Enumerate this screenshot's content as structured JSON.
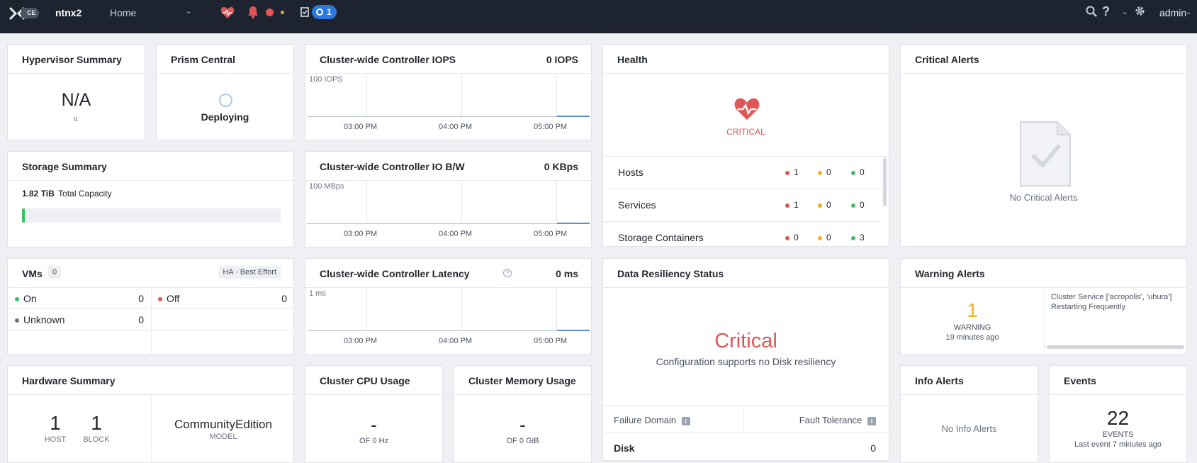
{
  "topbar": {
    "logo_badge": "CE",
    "cluster_name": "ntnx2",
    "nav_label": "Home",
    "task_count": "1",
    "user": "admin",
    "accent": "#2b79de",
    "bg": "#1d2430"
  },
  "hypervisor": {
    "title": "Hypervisor Summary",
    "value": "N/A",
    "version": "v."
  },
  "prism_central": {
    "title": "Prism Central",
    "status": "Deploying"
  },
  "iops": {
    "title": "Cluster-wide Controller IOPS",
    "value": "0 IOPS",
    "y_label": "100 IOPS",
    "x_labels": [
      "03:00 PM",
      "04:00 PM",
      "05:00 PM"
    ]
  },
  "health": {
    "title": "Health",
    "status": "CRITICAL",
    "rows": [
      {
        "label": "Hosts",
        "red": "1",
        "yellow": "0",
        "green": "0"
      },
      {
        "label": "Services",
        "red": "1",
        "yellow": "0",
        "green": "0"
      },
      {
        "label": "Storage Containers",
        "red": "0",
        "yellow": "0",
        "green": "3"
      }
    ]
  },
  "critical_alerts": {
    "title": "Critical Alerts",
    "empty": "No Critical Alerts"
  },
  "storage": {
    "title": "Storage Summary",
    "capacity_value": "1.82 TiB",
    "capacity_label": "Total Capacity",
    "used_fraction": 0.012
  },
  "iobw": {
    "title": "Cluster-wide Controller IO B/W",
    "value": "0 KBps",
    "y_label": "100 MBps",
    "x_labels": [
      "03:00 PM",
      "04:00 PM",
      "05:00 PM"
    ]
  },
  "vms": {
    "title": "VMs",
    "count": "0",
    "ha_label": "HA",
    "ha_mode": "Best Effort",
    "on_label": "On",
    "on_count": "0",
    "off_label": "Off",
    "off_count": "0",
    "unknown_label": "Unknown",
    "unknown_count": "0"
  },
  "latency": {
    "title": "Cluster-wide Controller Latency",
    "value": "0 ms",
    "y_label": "1 ms",
    "x_labels": [
      "03:00 PM",
      "04:00 PM",
      "05:00 PM"
    ]
  },
  "resiliency": {
    "title": "Data Resiliency Status",
    "status": "Critical",
    "message": "Configuration supports no Disk resiliency",
    "col1": "Failure Domain",
    "col2": "Fault Tolerance",
    "row_label": "Disk",
    "row_value": "0"
  },
  "warning_alerts": {
    "title": "Warning Alerts",
    "count": "1",
    "label": "WARNING",
    "time": "19 minutes ago",
    "message_line1": "Cluster Service ['acropolis', 'uhura']",
    "message_line2": "Restarting Frequently"
  },
  "hardware": {
    "title": "Hardware Summary",
    "hosts": "1",
    "hosts_label": "HOST",
    "blocks": "1",
    "blocks_label": "BLOCK",
    "model": "CommunityEdition",
    "model_label": "MODEL"
  },
  "cpu": {
    "title": "Cluster CPU Usage",
    "value": "-",
    "sub": "OF 0 Hz"
  },
  "memory": {
    "title": "Cluster Memory Usage",
    "value": "-",
    "sub": "OF 0 GiB"
  },
  "info_alerts": {
    "title": "Info Alerts",
    "empty": "No Info Alerts"
  },
  "events": {
    "title": "Events",
    "count": "22",
    "label": "EVENTS",
    "last": "Last event 7 minutes ago"
  }
}
